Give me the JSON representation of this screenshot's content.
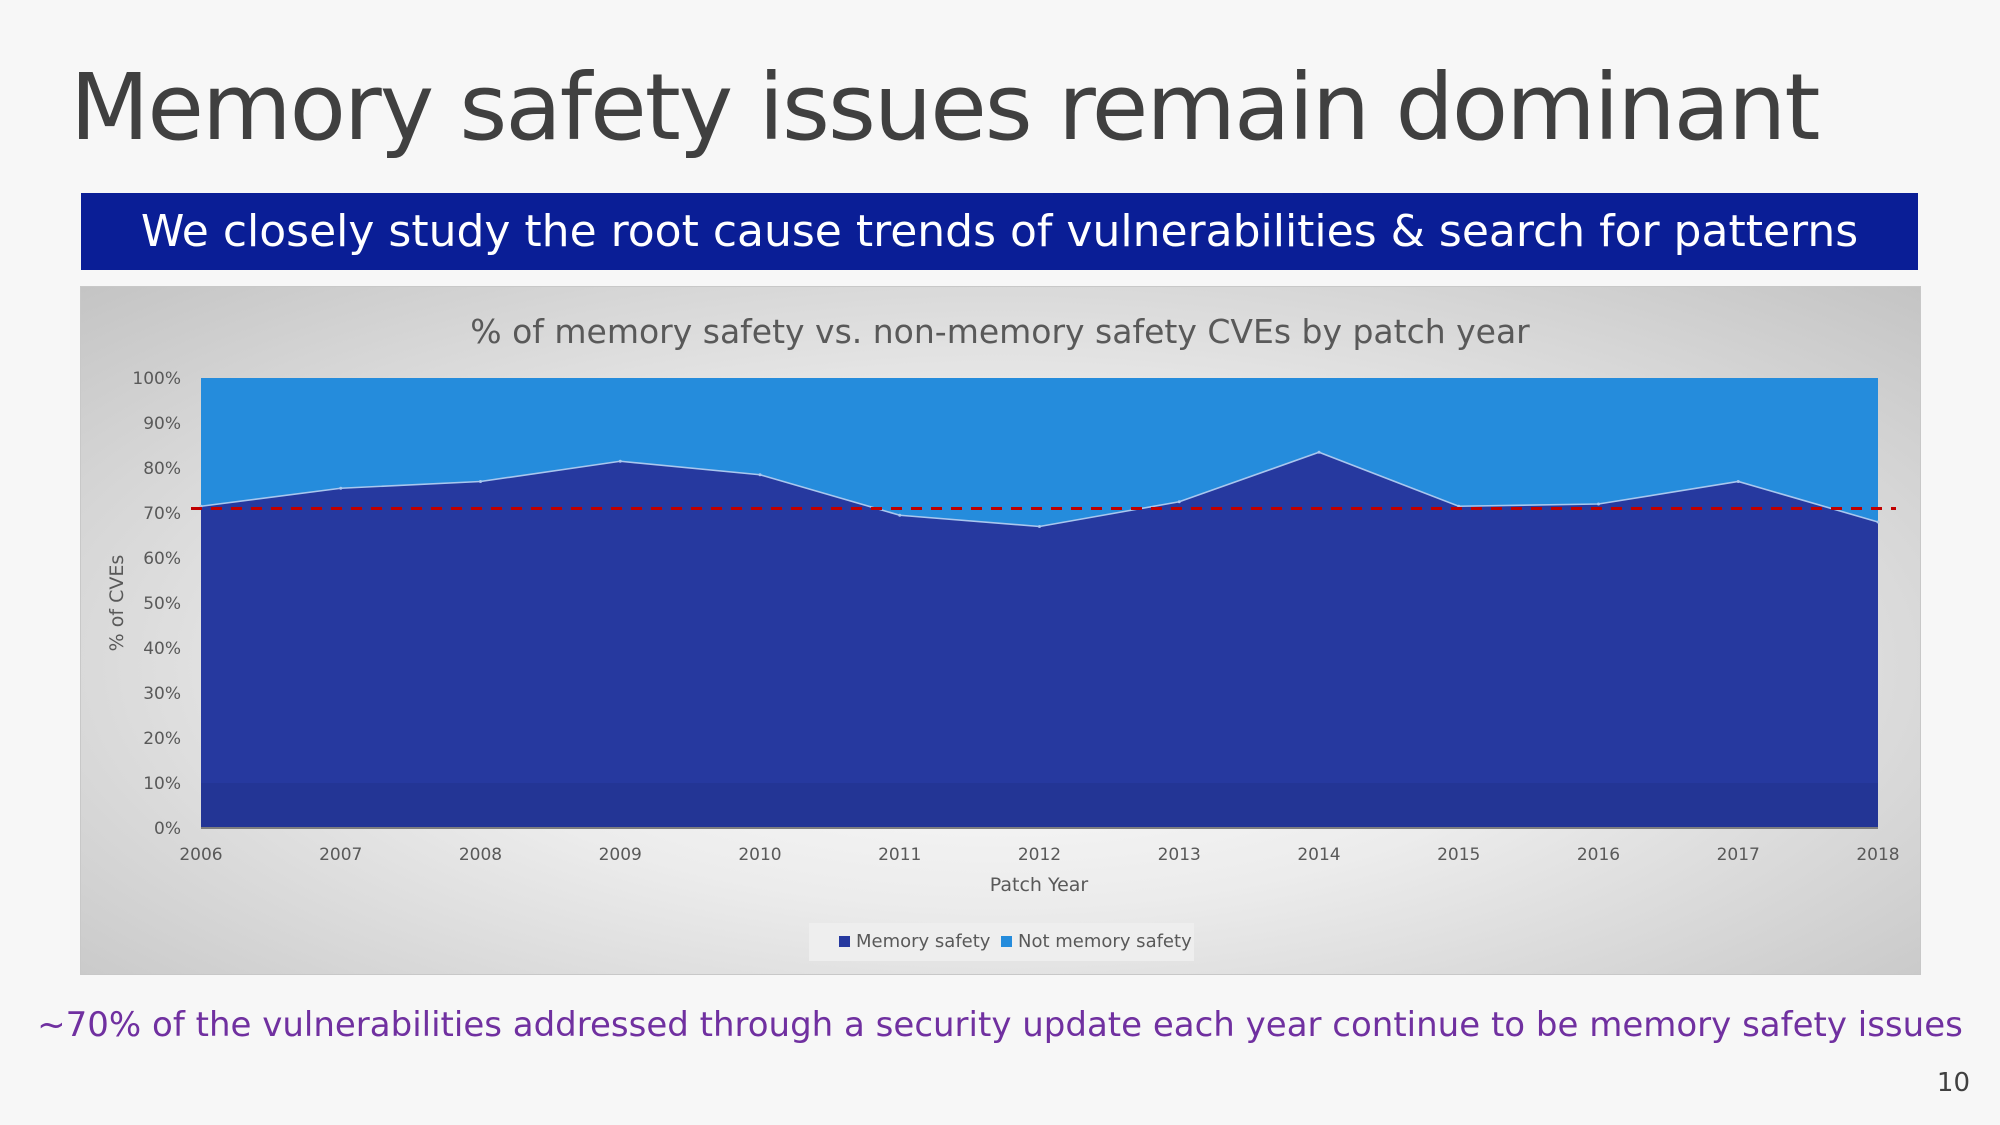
{
  "slide": {
    "title": "Memory safety issues remain dominant",
    "banner": "We closely study the root cause trends of vulnerabilities & search for patterns",
    "footer": "~70% of the vulnerabilities addressed through a security update each year continue to be memory safety issues",
    "page_number": "10"
  },
  "chart_data": {
    "type": "area",
    "stacked": true,
    "title": "% of memory safety vs. non-memory safety CVEs by patch year",
    "xlabel": "Patch Year",
    "ylabel": "% of CVEs",
    "x": [
      "2006",
      "2007",
      "2008",
      "2009",
      "2010",
      "2011",
      "2012",
      "2013",
      "2014",
      "2015",
      "2016",
      "2017",
      "2018"
    ],
    "ylim": [
      0,
      100
    ],
    "yticks": [
      "0%",
      "10%",
      "20%",
      "30%",
      "40%",
      "50%",
      "60%",
      "70%",
      "80%",
      "90%",
      "100%"
    ],
    "series": [
      {
        "name": "Memory safety",
        "color": "#26399f",
        "values": [
          71.5,
          75.5,
          77,
          81.5,
          78.5,
          69.5,
          67,
          72.5,
          83.5,
          71.5,
          72,
          77,
          68
        ]
      },
      {
        "name": "Not memory safety",
        "color": "#258cdc",
        "values": [
          28.5,
          24.5,
          23,
          18.5,
          21.5,
          30.5,
          33,
          27.5,
          16.5,
          28.5,
          28,
          23,
          32
        ]
      }
    ],
    "reference_line": {
      "value": 71,
      "color": "#c00000",
      "style": "dashed"
    },
    "grid": false,
    "legend": "bottom"
  }
}
